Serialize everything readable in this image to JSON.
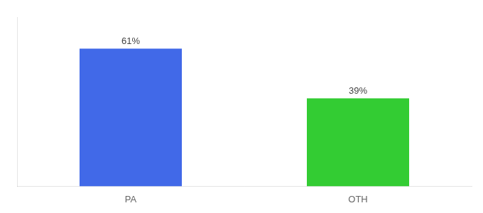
{
  "chart_data": {
    "type": "bar",
    "categories": [
      "PA",
      "OTH"
    ],
    "values": [
      61,
      39
    ],
    "value_labels": [
      "61%",
      "39%"
    ],
    "colors": [
      "#4169e8",
      "#33cc33"
    ],
    "ylim": [
      0,
      75
    ],
    "grid": false,
    "data_labels": true,
    "tick_labels": "x"
  }
}
